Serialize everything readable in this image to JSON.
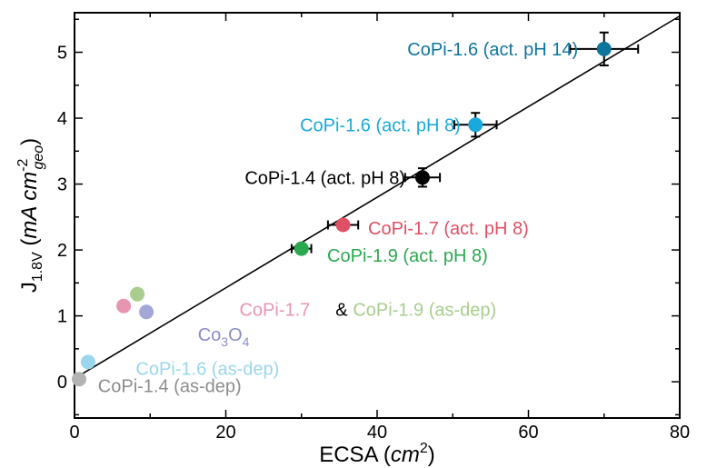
{
  "chart_data": {
    "type": "scatter",
    "xlabel": "ECSA (cm²)",
    "xlabel_parts": {
      "main": "ECSA (",
      "unit": "cm",
      "sup": "2",
      "close": ")"
    },
    "ylabel": "J1.8V (mA cm-2geo)",
    "ylabel_parts": {
      "j": "J",
      "jsub": "1.8V",
      "open": " (",
      "unit": "mA cm",
      "sup": "-2",
      "sub": "geo",
      "close": ")"
    },
    "xlim": [
      0,
      80
    ],
    "ylim": [
      -0.55,
      5.6
    ],
    "xticks": [
      0,
      20,
      40,
      60,
      80
    ],
    "yticks": [
      0,
      1,
      2,
      3,
      4,
      5
    ],
    "fit_line": {
      "x": [
        0,
        80
      ],
      "y": [
        0.05,
        5.55
      ]
    },
    "points": [
      {
        "x": 70.0,
        "y": 5.05,
        "xerr": 4.5,
        "yerr": 0.25,
        "color": "#0e759a"
      },
      {
        "x": 53.0,
        "y": 3.9,
        "xerr": 2.8,
        "yerr": 0.18,
        "color": "#1aa9dc"
      },
      {
        "x": 46.0,
        "y": 3.1,
        "xerr": 2.3,
        "yerr": 0.14,
        "color": "#000000"
      },
      {
        "x": 35.5,
        "y": 2.38,
        "xerr": 2.0,
        "yerr": 0.05,
        "color": "#e05064"
      },
      {
        "x": 30.0,
        "y": 2.02,
        "xerr": 1.3,
        "yerr": 0.05,
        "color": "#2ba84f"
      },
      {
        "x": 6.5,
        "y": 1.15,
        "xerr": 0,
        "yerr": 0,
        "color": "#e895b2"
      },
      {
        "x": 8.3,
        "y": 1.33,
        "xerr": 0,
        "yerr": 0,
        "color": "#a8cd8c"
      },
      {
        "x": 9.5,
        "y": 1.06,
        "xerr": 0,
        "yerr": 0,
        "color": "#a3a6d6"
      },
      {
        "x": 1.8,
        "y": 0.3,
        "xerr": 0,
        "yerr": 0,
        "color": "#9ad6ec"
      },
      {
        "x": 0.6,
        "y": 0.04,
        "xerr": 0,
        "yerr": 0,
        "color": "#b3b3b3"
      }
    ],
    "annotations": [
      {
        "text": "CoPi-1.6 (act. pH 14)",
        "x": 44.0,
        "y": 5.05,
        "color": "#0e759a"
      },
      {
        "text": "CoPi-1.6 (act. pH 8)",
        "x": 29.8,
        "y": 3.9,
        "color": "#1aa9dc"
      },
      {
        "text": "CoPi-1.4 (act. pH 8)",
        "x": 22.5,
        "y": 3.1,
        "color": "#000000"
      },
      {
        "text": "CoPi-1.7 (act. pH 8)",
        "x": 38.8,
        "y": 2.33,
        "color": "#e05064"
      },
      {
        "text": "CoPi-1.9 (act. pH 8)",
        "x": 33.4,
        "y": 1.92,
        "color": "#2ba84f"
      },
      {
        "text": "CoPi-1.7",
        "x": 21.8,
        "y": 1.1,
        "color": "#e895b2"
      },
      {
        "text": "&",
        "x": 34.5,
        "y": 1.1,
        "color": "#000000"
      },
      {
        "text": "CoPi-1.9 (as-dep)",
        "x": 36.8,
        "y": 1.1,
        "color": "#a8cd8c"
      },
      {
        "text": "CoPi-1.6 (as-dep)",
        "x": 8.1,
        "y": 0.2,
        "color": "#9ad6ec"
      },
      {
        "text": "CoPi-1.4 (as-dep)",
        "x": 3.1,
        "y": -0.06,
        "color": "#8c8c8c"
      }
    ],
    "co3o4_label": {
      "main": "Co",
      "sub1": "3",
      "mid": "O",
      "sub2": "4",
      "x": 16.3,
      "y": 0.72,
      "color": "#8a8dc6"
    }
  }
}
